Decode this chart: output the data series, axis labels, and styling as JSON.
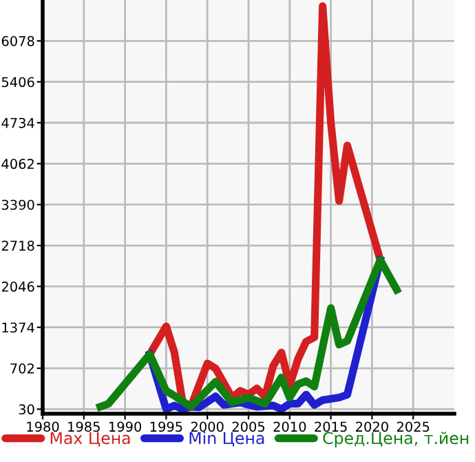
{
  "chart_data": {
    "type": "line",
    "xlim": [
      1980,
      2030
    ],
    "xticks": [
      1980,
      1985,
      1990,
      1995,
      2000,
      2005,
      2010,
      2015,
      2020,
      2025
    ],
    "ylim": [
      -45,
      6750
    ],
    "yticks": [
      30,
      702,
      1374,
      2046,
      2718,
      3390,
      4062,
      4734,
      5406,
      6078
    ],
    "grid": true,
    "legend": "bottom",
    "marker": "none",
    "line_style": "solid",
    "series": [
      {
        "name": "Max Цена",
        "color": "#d42020",
        "x": [
          1993,
          1995,
          1996,
          1997,
          1998,
          2000,
          2001,
          2003,
          2004,
          2005,
          2006,
          2007,
          2008,
          2009,
          2010,
          2011,
          2012,
          2013,
          2014,
          2015,
          2016,
          2017,
          2021
        ],
        "values": [
          930,
          1390,
          960,
          140,
          70,
          780,
          700,
          220,
          330,
          270,
          370,
          240,
          740,
          960,
          420,
          850,
          1140,
          1210,
          6650,
          4740,
          3450,
          4360,
          2480
        ]
      },
      {
        "name": "Min Цена",
        "color": "#2020d0",
        "x": [
          1993,
          1995,
          1996,
          1997,
          1998,
          1999,
          2001,
          2002,
          2004,
          2005,
          2006,
          2008,
          2009,
          2010,
          2011,
          2012,
          2013,
          2014,
          2016,
          2017,
          2021
        ],
        "values": [
          930,
          30,
          90,
          30,
          70,
          60,
          240,
          100,
          140,
          100,
          70,
          90,
          30,
          120,
          120,
          270,
          100,
          180,
          220,
          270,
          2480
        ]
      },
      {
        "name": "Сред.Цена, т.йен",
        "color": "#108010",
        "x": [
          1987,
          1988,
          1993,
          1995,
          1996,
          1998,
          2001,
          2003,
          2005,
          2007,
          2009,
          2010,
          2011,
          2012,
          2013,
          2015,
          2016,
          2017,
          2021,
          2023
        ],
        "values": [
          70,
          120,
          930,
          330,
          250,
          70,
          480,
          140,
          220,
          120,
          550,
          220,
          440,
          490,
          400,
          1690,
          1090,
          1150,
          2480,
          1990
        ]
      }
    ]
  }
}
